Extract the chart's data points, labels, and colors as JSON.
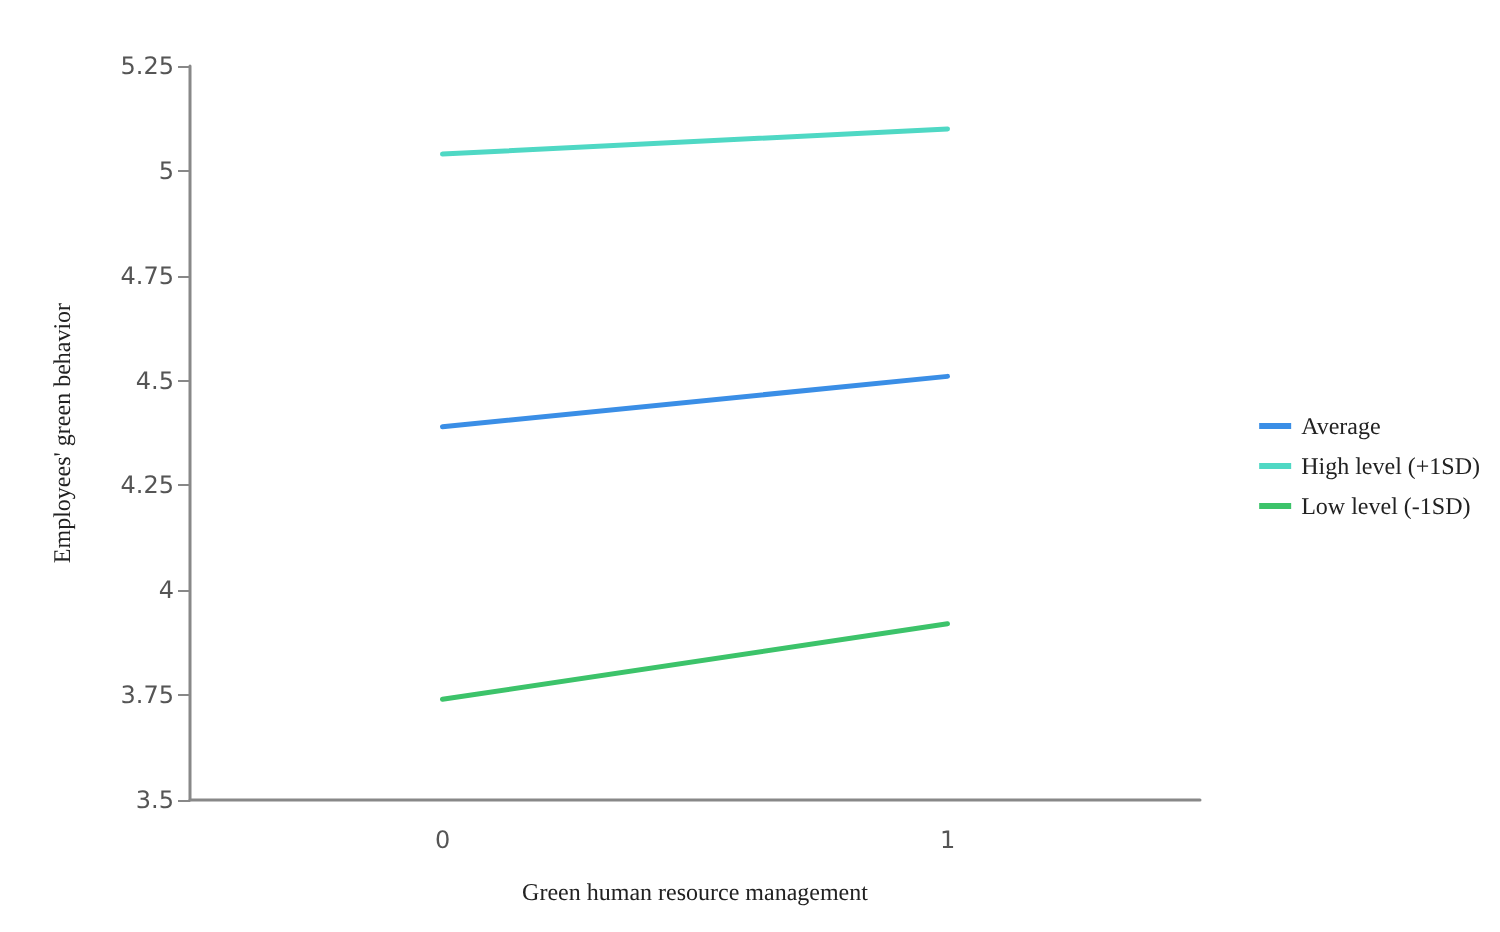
{
  "chart_data": {
    "type": "line",
    "xlabel": "Green human resource management",
    "ylabel": "Employees' green behavior",
    "categories": [
      "0",
      "1"
    ],
    "series": [
      {
        "name": "Average",
        "color": "#3a8ee6",
        "values": [
          4.39,
          4.51
        ]
      },
      {
        "name": "High level (+1SD)",
        "color": "#4fd8c4",
        "values": [
          5.04,
          5.1
        ]
      },
      {
        "name": "Low level (-1SD)",
        "color": "#3cc36a",
        "values": [
          3.74,
          3.92
        ]
      }
    ],
    "ylim": [
      3.5,
      5.25
    ],
    "yticks": [
      3.5,
      3.75,
      4,
      4.25,
      4.5,
      4.75,
      5,
      5.25
    ],
    "grid": false,
    "legend": "right",
    "marker": "none",
    "line_style": "solid"
  }
}
